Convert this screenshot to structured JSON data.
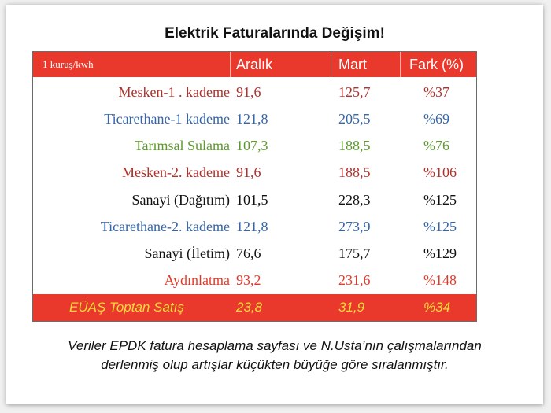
{
  "title": "Elektrik Faturalarında Değişim!",
  "table": {
    "header": {
      "unit": "1 kuruş/kwh",
      "col_a": "Aralık",
      "col_m": "Mart",
      "col_f": "Fark (%)"
    },
    "colors": {
      "red": "#b0302a",
      "blue": "#3566a8",
      "green": "#5c9a2e",
      "black": "#111111",
      "bright_red": "#e23a2a",
      "header_bg": "#e8392c",
      "footer_text": "#f5dc3a"
    },
    "rows": [
      {
        "name": "Mesken-1 . kademe",
        "aralik": "91,6",
        "mart": "125,7",
        "fark": "%37",
        "color": "#b0302a"
      },
      {
        "name": "Ticarethane-1 kademe",
        "aralik": "121,8",
        "mart": "205,5",
        "fark": "%69",
        "color": "#3566a8"
      },
      {
        "name": "Tarımsal Sulama",
        "aralik": "107,3",
        "mart": "188,5",
        "fark": "%76",
        "color": "#5c9a2e"
      },
      {
        "name": "Mesken-2. kademe",
        "aralik": "91,6",
        "mart": "188,5",
        "fark": "%106",
        "color": "#b0302a"
      },
      {
        "name": "Sanayi (Dağıtım)",
        "aralik": "101,5",
        "mart": "228,3",
        "fark": "%125",
        "color": "#111111"
      },
      {
        "name": "Ticarethane-2. kademe",
        "aralik": "121,8",
        "mart": "273,9",
        "fark": "%125",
        "color": "#3566a8"
      },
      {
        "name": "Sanayi (İletim)",
        "aralik": "76,6",
        "mart": "175,7",
        "fark": "%129",
        "color": "#111111"
      },
      {
        "name": "Aydınlatma",
        "aralik": "93,2",
        "mart": "231,6",
        "fark": "%148",
        "color": "#e23a2a"
      }
    ],
    "footer": {
      "name": "EÜAŞ Toptan Satış",
      "aralik": "23,8",
      "mart": "31,9",
      "fark": "%34"
    }
  },
  "caption": "Veriler EPDK fatura hesaplama sayfası ve N.Usta’nın çalışmalarından derlenmiş olup artışlar küçükten büyüğe göre sıralanmıştır."
}
